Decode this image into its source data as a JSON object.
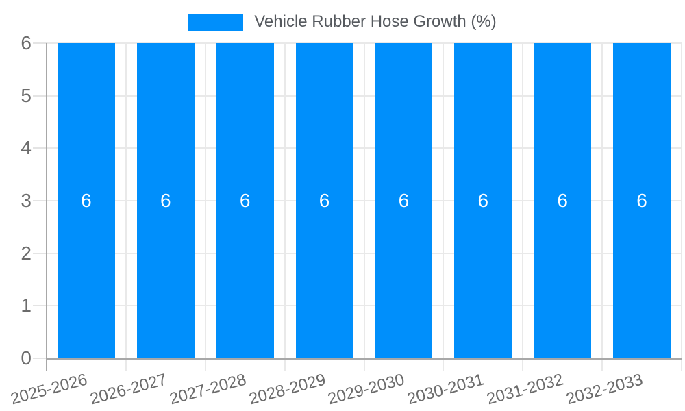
{
  "legend": {
    "label": "Vehicle Rubber Hose Growth (%)"
  },
  "chart_data": {
    "type": "bar",
    "title": "Vehicle Rubber Hose Growth (%)",
    "categories": [
      "2025-2026",
      "2026-2027",
      "2027-2028",
      "2028-2029",
      "2029-2030",
      "2030-2031",
      "2031-2032",
      "2032-2033"
    ],
    "values": [
      6,
      6,
      6,
      6,
      6,
      6,
      6,
      6
    ],
    "data_labels": [
      "6",
      "6",
      "6",
      "6",
      "6",
      "6",
      "6",
      "6"
    ],
    "xlabel": "",
    "ylabel": "",
    "ylim": [
      0,
      6
    ],
    "y_ticks": [
      0,
      1,
      2,
      3,
      4,
      5,
      6
    ],
    "grid": true,
    "legend_position": "top"
  },
  "colors": {
    "bar": "#008ffb",
    "bar_label": "#ffffff",
    "grid": "#e9e9e9",
    "axis": "#a8a8a8",
    "axis_label": "#6b6b6b",
    "legend_text": "#55595e",
    "background": "#ffffff"
  }
}
